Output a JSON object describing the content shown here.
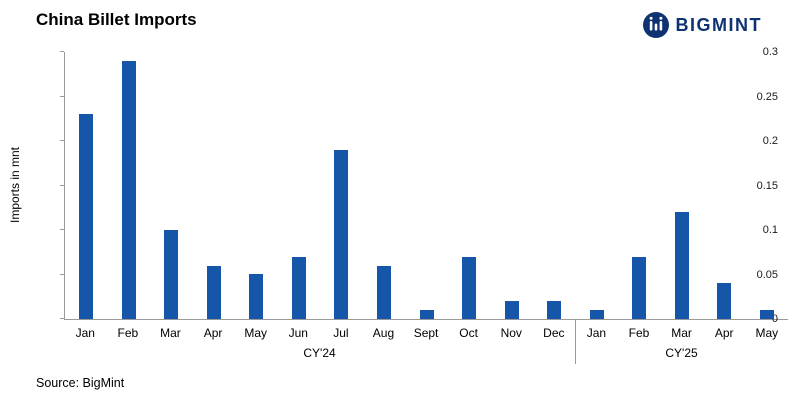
{
  "header": {
    "title": "China Billet Imports",
    "brand": "BIGMINT"
  },
  "footer": {
    "source": "Source: BigMint"
  },
  "colors": {
    "bar": "#1556a8",
    "brand": "#0d3372",
    "axis": "#9a9a9a"
  },
  "chart_data": {
    "type": "bar",
    "title": "China Billet Imports",
    "xlabel": "",
    "ylabel": "Imports in mnt",
    "ylim": [
      0,
      0.3
    ],
    "yticks": [
      0,
      0.05,
      0.1,
      0.15,
      0.2,
      0.25,
      0.3
    ],
    "ytick_labels": [
      "0",
      "0.05",
      "0.1",
      "0.15",
      "0.2",
      "0.25",
      "0.3"
    ],
    "grid": false,
    "legend": false,
    "groups": [
      {
        "label": "CY'24",
        "categories": [
          "Jan",
          "Feb",
          "Mar",
          "Apr",
          "May",
          "Jun",
          "Jul",
          "Aug",
          "Sept",
          "Oct",
          "Nov",
          "Dec"
        ],
        "values": [
          0.23,
          0.29,
          0.1,
          0.06,
          0.05,
          0.07,
          0.19,
          0.06,
          0.01,
          0.07,
          0.02,
          0.02
        ]
      },
      {
        "label": "CY'25",
        "categories": [
          "Jan",
          "Feb",
          "Mar",
          "Apr",
          "May"
        ],
        "values": [
          0.01,
          0.07,
          0.12,
          0.04,
          0.01
        ]
      }
    ]
  }
}
